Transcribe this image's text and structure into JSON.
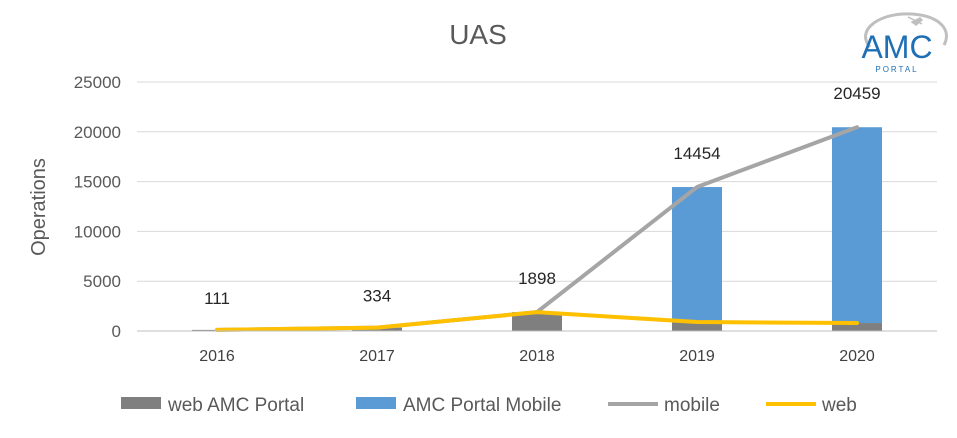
{
  "chart_data": {
    "type": "bar",
    "title": "UAS",
    "xlabel": "",
    "ylabel": "Operations",
    "ylim": [
      0,
      25000
    ],
    "yticks": [
      0,
      5000,
      10000,
      15000,
      20000,
      25000
    ],
    "categories": [
      "2016",
      "2017",
      "2018",
      "2019",
      "2020"
    ],
    "stacked": true,
    "series": [
      {
        "name": "web AMC Portal",
        "type": "bar",
        "color": "#7f7f7f",
        "values": [
          111,
          334,
          1898,
          900,
          800
        ]
      },
      {
        "name": "AMC Portal Mobile",
        "type": "bar",
        "color": "#5b9bd5",
        "values": [
          0,
          0,
          0,
          13554,
          19659
        ]
      },
      {
        "name": "mobile",
        "type": "line",
        "color": "#a5a5a5",
        "values": [
          111,
          334,
          1898,
          14454,
          20459
        ]
      },
      {
        "name": "web",
        "type": "line",
        "color": "#ffc000",
        "values": [
          111,
          334,
          1898,
          900,
          800
        ]
      }
    ],
    "data_labels": [
      "111",
      "334",
      "1898",
      "14454",
      "20459"
    ],
    "grid": true,
    "legend": "bottom"
  },
  "logo": {
    "text": "AMC",
    "subtext": "PORTAL",
    "color": "#1f6fb5"
  }
}
